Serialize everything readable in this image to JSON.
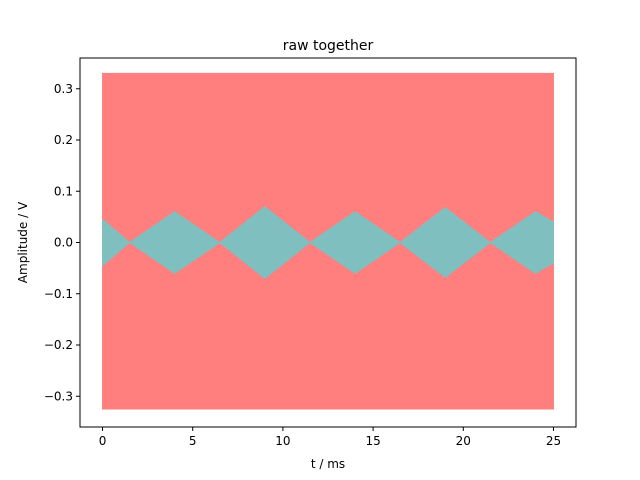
{
  "chart_data": {
    "type": "area",
    "title": "raw together",
    "xlabel": "t / ms",
    "ylabel": "Amplitude / V",
    "xlim": [
      -1.25,
      26.25
    ],
    "ylim": [
      -0.36,
      0.36
    ],
    "x_ticks": [
      0,
      5,
      10,
      15,
      20,
      25
    ],
    "y_ticks": [
      -0.3,
      -0.2,
      -0.1,
      0.0,
      0.1,
      0.2,
      0.3
    ],
    "x_tick_labels": [
      "0",
      "5",
      "10",
      "15",
      "20",
      "25"
    ],
    "y_tick_labels": [
      "−0.3",
      "−0.2",
      "−0.1",
      "0.0",
      "0.1",
      "0.2",
      "0.3"
    ],
    "grid": false,
    "series": [
      {
        "color": "#ff7f7f",
        "envelope": {
          "x": [
            0,
            25
          ],
          "upper": [
            0.33,
            0.33
          ],
          "lower": [
            -0.325,
            -0.325
          ]
        }
      },
      {
        "color": "#7fbfbf",
        "envelope": {
          "x": [
            0,
            1.5,
            4,
            6.5,
            9,
            11.5,
            14,
            16.5,
            19,
            21.5,
            24,
            25
          ],
          "upper": [
            0.045,
            0.0,
            0.06,
            0.0,
            0.07,
            0.0,
            0.06,
            0.0,
            0.068,
            0.0,
            0.06,
            0.04
          ],
          "lower": [
            -0.045,
            0.0,
            -0.06,
            0.0,
            -0.07,
            0.0,
            -0.06,
            0.0,
            -0.068,
            0.0,
            -0.06,
            -0.04
          ]
        }
      }
    ]
  }
}
